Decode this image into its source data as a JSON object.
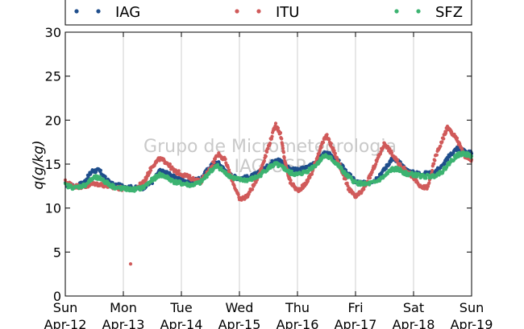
{
  "chart_data": {
    "type": "scatter",
    "title": "",
    "xlabel": "",
    "ylabel": "q(g/kg)",
    "ylim": [
      0,
      30
    ],
    "yticks": [
      0,
      5,
      10,
      15,
      20,
      25,
      30
    ],
    "xlim": [
      "2015-04-12 00:00",
      "2015-04-19 00:00"
    ],
    "xticks": [
      {
        "day": "Sun",
        "date": "Apr-12"
      },
      {
        "day": "Mon",
        "date": "Apr-13"
      },
      {
        "day": "Tue",
        "date": "Apr-14"
      },
      {
        "day": "Wed",
        "date": "Apr-15"
      },
      {
        "day": "Thu",
        "date": "Apr-16"
      },
      {
        "day": "Fri",
        "date": "Apr-17"
      },
      {
        "day": "Sat",
        "date": "Apr-18"
      },
      {
        "day": "Sun",
        "date": "Apr-19"
      }
    ],
    "grid": "vertical",
    "legend_position": "top",
    "watermark": [
      "Grupo de Micrometeorologia",
      "IAG/USP"
    ],
    "series": [
      {
        "name": "IAG",
        "color": "#1f4e8c",
        "points": [
          [
            "2015-04-12 00:00",
            12.7
          ],
          [
            "2015-04-12 04:00",
            12.4
          ],
          [
            "2015-04-12 08:00",
            13.0
          ],
          [
            "2015-04-12 11:00",
            14.2
          ],
          [
            "2015-04-12 14:00",
            14.3
          ],
          [
            "2015-04-12 17:00",
            13.2
          ],
          [
            "2015-04-12 20:00",
            12.6
          ],
          [
            "2015-04-13 00:00",
            12.5
          ],
          [
            "2015-04-13 04:00",
            12.3
          ],
          [
            "2015-04-13 08:00",
            12.3
          ],
          [
            "2015-04-13 12:00",
            13.0
          ],
          [
            "2015-04-13 15:00",
            14.2
          ],
          [
            "2015-04-13 18:00",
            14.0
          ],
          [
            "2015-04-13 21:00",
            13.5
          ],
          [
            "2015-04-14 00:00",
            13.2
          ],
          [
            "2015-04-14 04:00",
            13.0
          ],
          [
            "2015-04-14 08:00",
            13.3
          ],
          [
            "2015-04-14 12:00",
            14.8
          ],
          [
            "2015-04-14 15:00",
            15.2
          ],
          [
            "2015-04-14 18:00",
            14.3
          ],
          [
            "2015-04-14 21:00",
            13.6
          ],
          [
            "2015-04-15 00:00",
            13.4
          ],
          [
            "2015-04-15 04:00",
            13.5
          ],
          [
            "2015-04-15 08:00",
            14.0
          ],
          [
            "2015-04-15 12:00",
            14.8
          ],
          [
            "2015-04-15 15:00",
            15.6
          ],
          [
            "2015-04-15 18:00",
            15.2
          ],
          [
            "2015-04-15 21:00",
            14.4
          ],
          [
            "2015-04-16 00:00",
            14.3
          ],
          [
            "2015-04-16 04:00",
            14.6
          ],
          [
            "2015-04-16 08:00",
            15.4
          ],
          [
            "2015-04-16 11:00",
            16.2
          ],
          [
            "2015-04-16 14:00",
            16.0
          ],
          [
            "2015-04-16 17:00",
            15.3
          ],
          [
            "2015-04-16 20:00",
            14.2
          ],
          [
            "2015-04-17 00:00",
            13.0
          ],
          [
            "2015-04-17 04:00",
            12.8
          ],
          [
            "2015-04-17 08:00",
            13.2
          ],
          [
            "2015-04-17 12:00",
            14.4
          ],
          [
            "2015-04-17 15:00",
            15.6
          ],
          [
            "2015-04-17 18:00",
            15.2
          ],
          [
            "2015-04-17 21:00",
            14.3
          ],
          [
            "2015-04-18 00:00",
            14.0
          ],
          [
            "2015-04-18 04:00",
            13.9
          ],
          [
            "2015-04-18 08:00",
            14.0
          ],
          [
            "2015-04-18 12:00",
            14.8
          ],
          [
            "2015-04-18 15:00",
            16.0
          ],
          [
            "2015-04-18 18:00",
            16.8
          ],
          [
            "2015-04-18 21:00",
            16.5
          ],
          [
            "2015-04-19 00:00",
            16.2
          ]
        ]
      },
      {
        "name": "ITU",
        "color": "#d05a5a",
        "points": [
          [
            "2015-04-12 00:00",
            13.0
          ],
          [
            "2015-04-12 04:00",
            12.5
          ],
          [
            "2015-04-12 08:00",
            12.4
          ],
          [
            "2015-04-12 12:00",
            12.8
          ],
          [
            "2015-04-12 16:00",
            12.6
          ],
          [
            "2015-04-12 20:00",
            12.3
          ],
          [
            "2015-04-13 00:00",
            12.2
          ],
          [
            "2015-04-13 03:00",
            3.6
          ],
          [
            "2015-04-13 06:00",
            12.4
          ],
          [
            "2015-04-13 09:00",
            13.2
          ],
          [
            "2015-04-13 12:00",
            14.8
          ],
          [
            "2015-04-13 15:00",
            15.6
          ],
          [
            "2015-04-13 18:00",
            15.2
          ],
          [
            "2015-04-13 21:00",
            14.2
          ],
          [
            "2015-04-14 00:00",
            13.9
          ],
          [
            "2015-04-14 04:00",
            13.4
          ],
          [
            "2015-04-14 08:00",
            13.0
          ],
          [
            "2015-04-14 12:00",
            14.5
          ],
          [
            "2015-04-14 15:00",
            16.2
          ],
          [
            "2015-04-14 18:00",
            15.5
          ],
          [
            "2015-04-14 21:00",
            13.2
          ],
          [
            "2015-04-15 00:00",
            11.0
          ],
          [
            "2015-04-15 03:00",
            11.3
          ],
          [
            "2015-04-15 06:00",
            12.6
          ],
          [
            "2015-04-15 09:00",
            14.5
          ],
          [
            "2015-04-15 12:00",
            17.0
          ],
          [
            "2015-04-15 15:00",
            19.5
          ],
          [
            "2015-04-15 17:00",
            18.4
          ],
          [
            "2015-04-15 19:00",
            15.0
          ],
          [
            "2015-04-15 21:00",
            13.0
          ],
          [
            "2015-04-16 00:00",
            12.0
          ],
          [
            "2015-04-16 03:00",
            12.6
          ],
          [
            "2015-04-16 06:00",
            14.0
          ],
          [
            "2015-04-16 09:00",
            16.5
          ],
          [
            "2015-04-16 12:00",
            18.3
          ],
          [
            "2015-04-16 15:00",
            16.5
          ],
          [
            "2015-04-16 18:00",
            14.5
          ],
          [
            "2015-04-16 21:00",
            12.3
          ],
          [
            "2015-04-17 00:00",
            11.2
          ],
          [
            "2015-04-17 03:00",
            12.0
          ],
          [
            "2015-04-17 06:00",
            13.6
          ],
          [
            "2015-04-17 09:00",
            15.5
          ],
          [
            "2015-04-17 12:00",
            17.4
          ],
          [
            "2015-04-17 15:00",
            16.2
          ],
          [
            "2015-04-17 18:00",
            15.0
          ],
          [
            "2015-04-17 21:00",
            14.2
          ],
          [
            "2015-04-18 00:00",
            13.5
          ],
          [
            "2015-04-18 03:00",
            12.3
          ],
          [
            "2015-04-18 06:00",
            12.4
          ],
          [
            "2015-04-18 09:00",
            15.8
          ],
          [
            "2015-04-18 12:00",
            17.8
          ],
          [
            "2015-04-18 14:00",
            19.2
          ],
          [
            "2015-04-18 16:00",
            18.5
          ],
          [
            "2015-04-18 18:00",
            17.8
          ],
          [
            "2015-04-18 21:00",
            16.0
          ],
          [
            "2015-04-19 00:00",
            15.5
          ]
        ]
      },
      {
        "name": "SFZ",
        "color": "#3cb371",
        "points": [
          [
            "2015-04-12 00:00",
            12.6
          ],
          [
            "2015-04-12 04:00",
            12.3
          ],
          [
            "2015-04-12 08:00",
            12.6
          ],
          [
            "2015-04-12 12:00",
            13.5
          ],
          [
            "2015-04-12 15:00",
            13.3
          ],
          [
            "2015-04-12 18:00",
            12.7
          ],
          [
            "2015-04-12 21:00",
            12.3
          ],
          [
            "2015-04-13 00:00",
            12.2
          ],
          [
            "2015-04-13 04:00",
            12.1
          ],
          [
            "2015-04-13 08:00",
            12.3
          ],
          [
            "2015-04-13 12:00",
            13.2
          ],
          [
            "2015-04-13 15:00",
            13.8
          ],
          [
            "2015-04-13 18:00",
            13.5
          ],
          [
            "2015-04-13 21:00",
            13.0
          ],
          [
            "2015-04-14 00:00",
            12.8
          ],
          [
            "2015-04-14 04:00",
            12.6
          ],
          [
            "2015-04-14 08:00",
            12.9
          ],
          [
            "2015-04-14 12:00",
            14.2
          ],
          [
            "2015-04-14 15:00",
            14.8
          ],
          [
            "2015-04-14 18:00",
            14.0
          ],
          [
            "2015-04-14 21:00",
            13.5
          ],
          [
            "2015-04-15 00:00",
            13.2
          ],
          [
            "2015-04-15 04:00",
            13.2
          ],
          [
            "2015-04-15 08:00",
            13.6
          ],
          [
            "2015-04-15 12:00",
            14.6
          ],
          [
            "2015-04-15 15:00",
            15.0
          ],
          [
            "2015-04-15 18:00",
            14.6
          ],
          [
            "2015-04-15 21:00",
            14.0
          ],
          [
            "2015-04-16 00:00",
            13.8
          ],
          [
            "2015-04-16 04:00",
            14.2
          ],
          [
            "2015-04-16 08:00",
            15.0
          ],
          [
            "2015-04-16 11:00",
            16.0
          ],
          [
            "2015-04-16 14:00",
            15.6
          ],
          [
            "2015-04-16 17:00",
            14.8
          ],
          [
            "2015-04-16 20:00",
            13.8
          ],
          [
            "2015-04-17 00:00",
            12.9
          ],
          [
            "2015-04-17 04:00",
            12.7
          ],
          [
            "2015-04-17 08:00",
            12.9
          ],
          [
            "2015-04-17 12:00",
            13.6
          ],
          [
            "2015-04-17 15:00",
            14.4
          ],
          [
            "2015-04-17 18:00",
            14.4
          ],
          [
            "2015-04-17 21:00",
            13.9
          ],
          [
            "2015-04-18 00:00",
            13.8
          ],
          [
            "2015-04-18 04:00",
            13.6
          ],
          [
            "2015-04-18 08:00",
            13.6
          ],
          [
            "2015-04-18 12:00",
            14.2
          ],
          [
            "2015-04-18 15:00",
            15.2
          ],
          [
            "2015-04-18 18:00",
            16.0
          ],
          [
            "2015-04-18 21:00",
            16.2
          ],
          [
            "2015-04-19 00:00",
            15.9
          ]
        ]
      }
    ]
  }
}
